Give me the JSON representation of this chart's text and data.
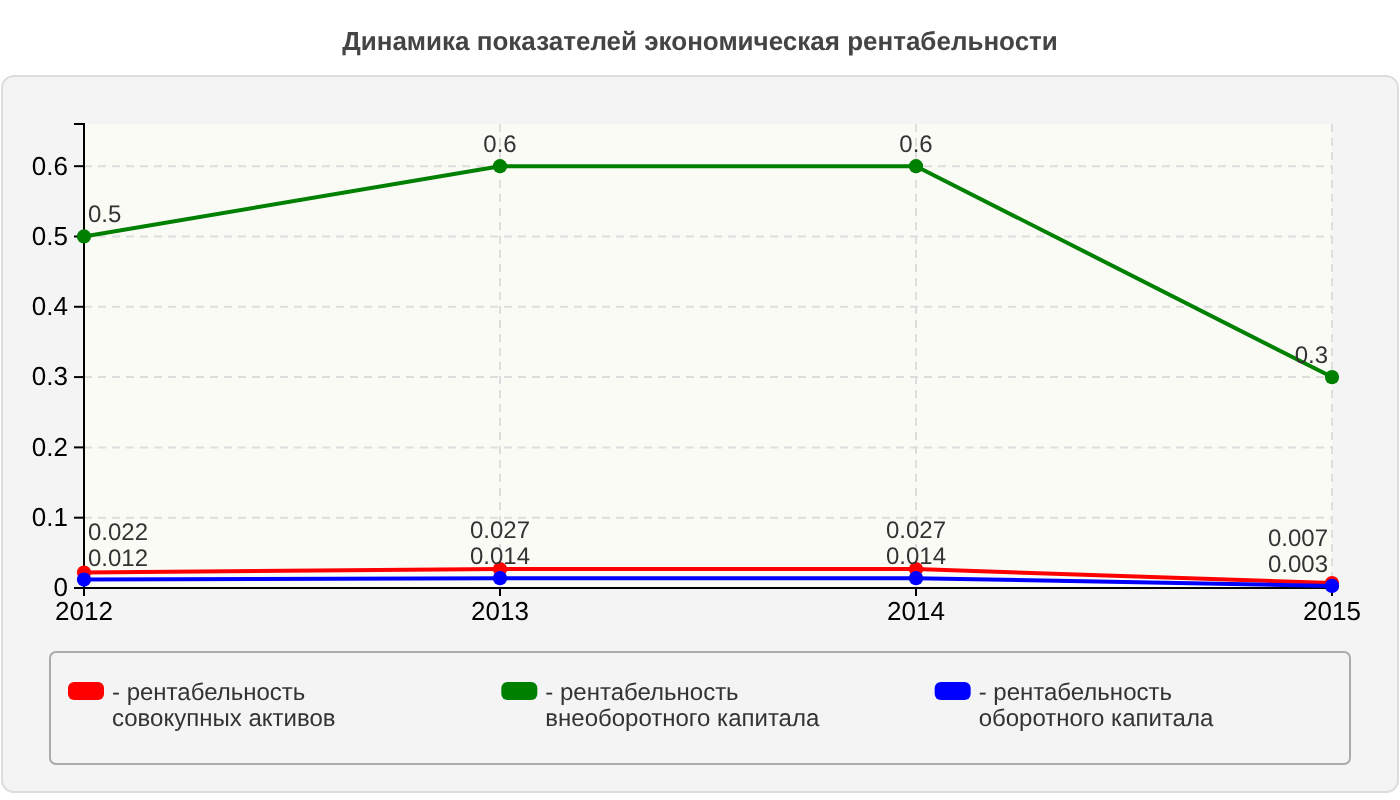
{
  "chart_data": {
    "type": "line",
    "title": "Динамика показателей экономическая рентабельности",
    "categories": [
      "2012",
      "2013",
      "2014",
      "2015"
    ],
    "series": [
      {
        "name": "- рентабельность совокупных активов",
        "color": "#ff0000",
        "values": [
          0.022,
          0.027,
          0.027,
          0.007
        ]
      },
      {
        "name": "- рентабельность внеоборотного капитала",
        "color": "#008000",
        "values": [
          0.5,
          0.6,
          0.6,
          0.3
        ]
      },
      {
        "name": "- рентабельность оборотного капитала",
        "color": "#0000ff",
        "values": [
          0.012,
          0.014,
          0.014,
          0.003
        ]
      }
    ],
    "ylim": [
      0,
      0.66
    ],
    "yticks": [
      0,
      0.1,
      0.2,
      0.3,
      0.4,
      0.5,
      0.6
    ],
    "grid": true,
    "legend": "bottom",
    "marker": "circle",
    "line_style": "solid",
    "data_labels": true
  }
}
